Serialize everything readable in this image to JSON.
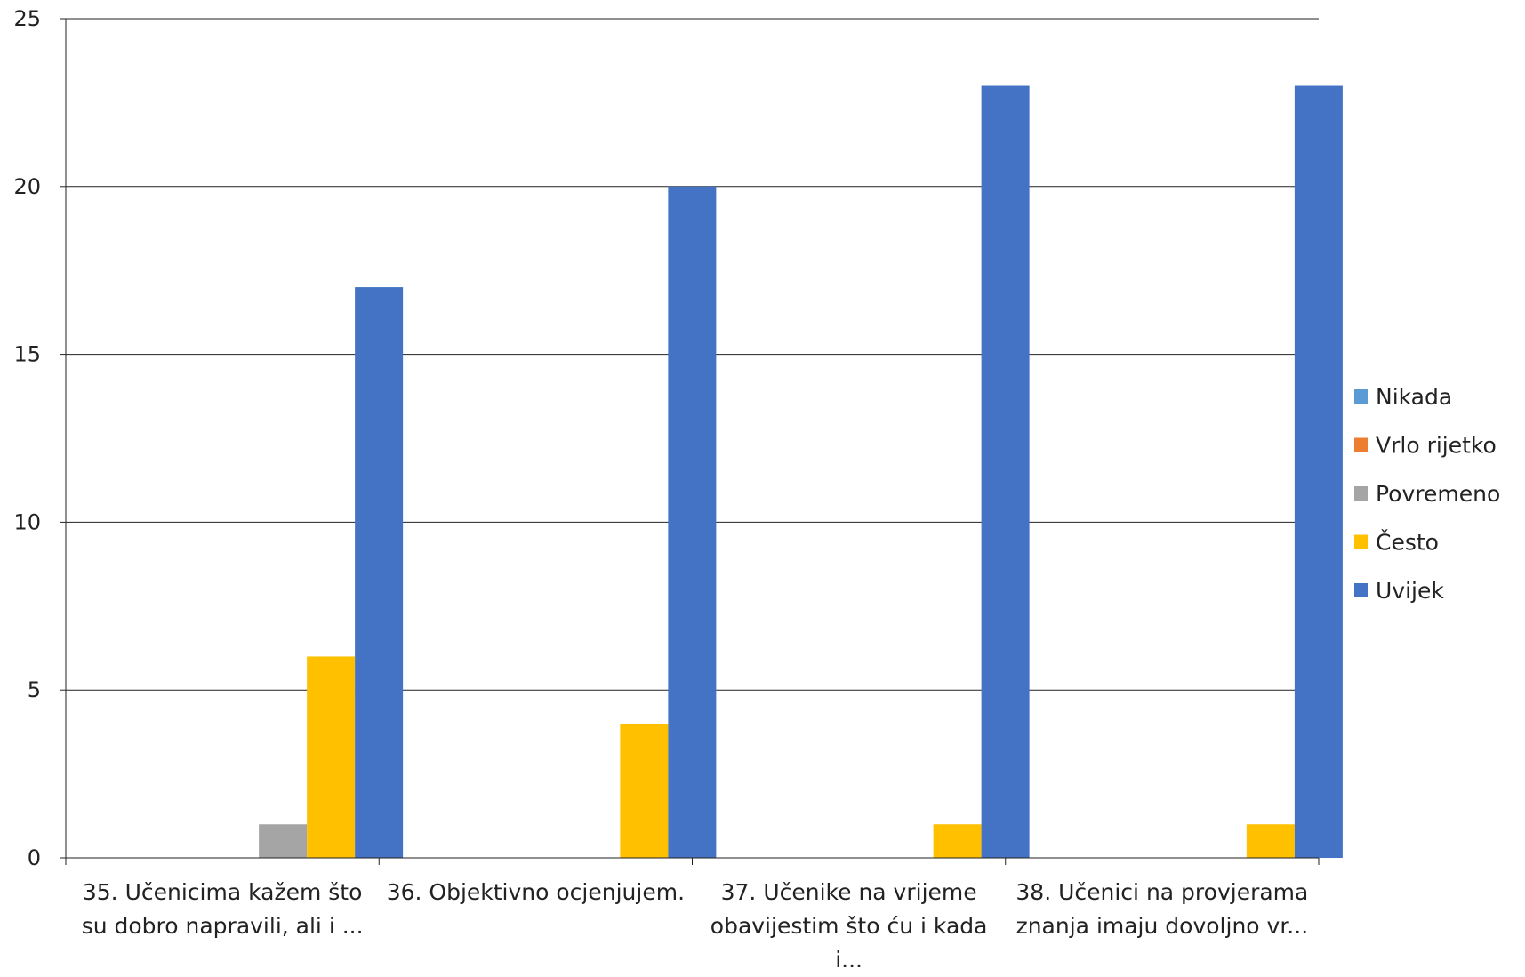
{
  "chart_data": {
    "type": "bar",
    "title": "",
    "xlabel": "",
    "ylabel": "",
    "ylim": [
      0,
      25
    ],
    "yticks": [
      0,
      5,
      10,
      15,
      20,
      25
    ],
    "grid": true,
    "legend_position": "right",
    "categories": [
      [
        "35. Učenicima kažem što",
        "su dobro napravili, ali i ..."
      ],
      [
        "36. Objektivno ocjenjujem."
      ],
      [
        "37. Učenike na vrijeme",
        "obavijestim što ću i kada",
        "i..."
      ],
      [
        "38. Učenici na provjerama",
        "znanja imaju dovoljno vr..."
      ]
    ],
    "series": [
      {
        "name": "Nikada",
        "color": "#5B9BD5",
        "values": [
          0,
          0,
          0,
          0
        ]
      },
      {
        "name": "Vrlo rijetko",
        "color": "#ED7D31",
        "values": [
          0,
          0,
          0,
          0
        ]
      },
      {
        "name": "Povremeno",
        "color": "#A5A5A5",
        "values": [
          1,
          0,
          0,
          0
        ]
      },
      {
        "name": "Često",
        "color": "#FFC000",
        "values": [
          6,
          4,
          1,
          1
        ]
      },
      {
        "name": "Uvijek",
        "color": "#4472C4",
        "values": [
          17,
          20,
          23,
          23
        ]
      }
    ]
  }
}
